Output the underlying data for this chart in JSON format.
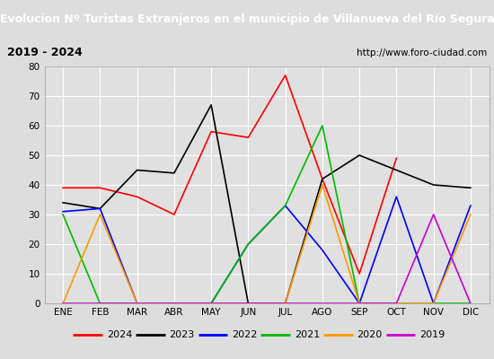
{
  "title": "Evolucion Nº Turistas Extranjeros en el municipio de Villanueva del Río Segura",
  "subtitle_left": "2019 - 2024",
  "subtitle_right": "http://www.foro-ciudad.com",
  "x_labels": [
    "ENE",
    "FEB",
    "MAR",
    "ABR",
    "MAY",
    "JUN",
    "JUL",
    "AGO",
    "SEP",
    "OCT",
    "NOV",
    "DIC"
  ],
  "ylim": [
    0,
    80
  ],
  "yticks": [
    0,
    10,
    20,
    30,
    40,
    50,
    60,
    70,
    80
  ],
  "series": {
    "2024": {
      "color": "#ff0000",
      "values": [
        39,
        39,
        36,
        30,
        58,
        56,
        77,
        42,
        10,
        49,
        null,
        null
      ]
    },
    "2023": {
      "color": "#000000",
      "values": [
        34,
        32,
        45,
        44,
        67,
        0,
        0,
        42,
        50,
        45,
        40,
        39
      ]
    },
    "2022": {
      "color": "#0000ff",
      "values": [
        31,
        32,
        0,
        0,
        0,
        20,
        33,
        18,
        0,
        36,
        0,
        33
      ]
    },
    "2021": {
      "color": "#00bb00",
      "values": [
        30,
        0,
        0,
        0,
        0,
        20,
        33,
        60,
        0,
        0,
        0,
        0
      ]
    },
    "2020": {
      "color": "#ff9900",
      "values": [
        0,
        30,
        0,
        0,
        0,
        0,
        0,
        40,
        0,
        0,
        0,
        30
      ]
    },
    "2019": {
      "color": "#cc00cc",
      "values": [
        0,
        0,
        0,
        0,
        0,
        0,
        0,
        0,
        0,
        0,
        30,
        0
      ]
    }
  },
  "title_bg": "#1874a4",
  "title_color": "#ffffff",
  "subtitle_bg": "#cccccc",
  "plot_bg": "#e0e0e0",
  "grid_color": "#ffffff",
  "outer_bg": "#dddddd"
}
